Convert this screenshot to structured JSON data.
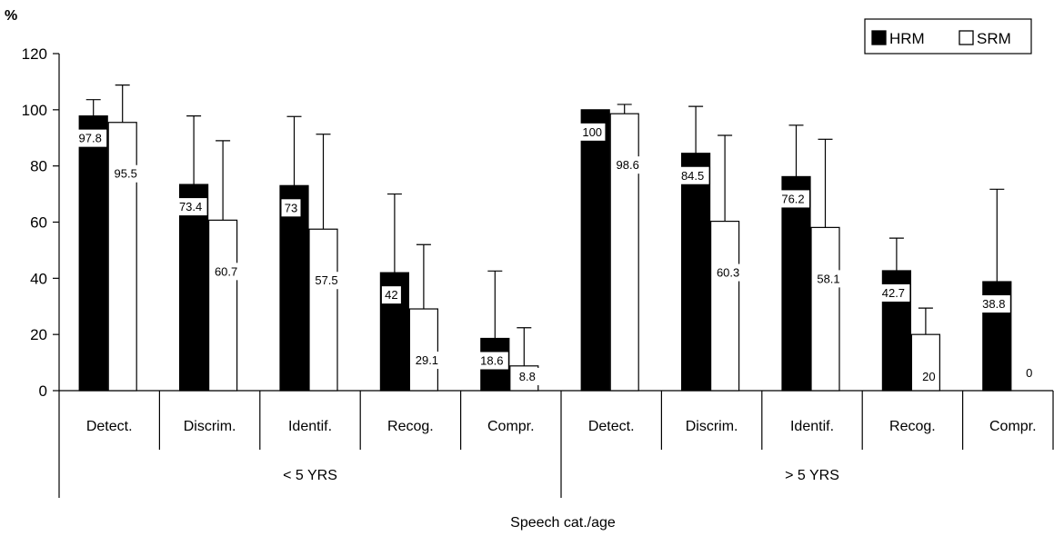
{
  "chart_data": {
    "type": "bar",
    "ylabel": "%",
    "xlabel": "Speech cat./age",
    "ylim": [
      0,
      120
    ],
    "yticks": [
      0,
      20,
      40,
      60,
      80,
      100,
      120
    ],
    "groups": [
      {
        "label": "< 5 YRS",
        "categories": [
          "Detect.",
          "Discrim.",
          "Identif.",
          "Recog.",
          "Compr."
        ],
        "series": [
          {
            "name": "HRM",
            "values": [
              97.8,
              73.4,
              73,
              42,
              18.6
            ],
            "error_plus": [
              5.8,
              24.4,
              24.6,
              28,
              24
            ]
          },
          {
            "name": "SRM",
            "values": [
              95.5,
              60.7,
              57.5,
              29.1,
              8.8
            ],
            "error_plus": [
              13.3,
              28.3,
              33.8,
              22.9,
              13.6
            ]
          }
        ]
      },
      {
        "label": "> 5 YRS",
        "categories": [
          "Detect.",
          "Discrim.",
          "Identif.",
          "Recog.",
          "Compr."
        ],
        "series": [
          {
            "name": "HRM",
            "values": [
              100,
              84.5,
              76.2,
              42.7,
              38.8
            ],
            "error_plus": [
              0,
              16.7,
              18.3,
              11.6,
              32.9
            ]
          },
          {
            "name": "SRM",
            "values": [
              98.6,
              60.3,
              58.1,
              20,
              0
            ],
            "error_plus": [
              3.3,
              30.6,
              31.4,
              9.4,
              0
            ]
          }
        ]
      }
    ],
    "legend": {
      "position": "top-right",
      "items": [
        {
          "name": "HRM",
          "fill": "#000000"
        },
        {
          "name": "SRM",
          "fill": "#ffffff"
        }
      ]
    },
    "grid": false,
    "colors": {
      "hrm": "#000000",
      "srm": "#ffffff",
      "axis": "#000000"
    }
  }
}
